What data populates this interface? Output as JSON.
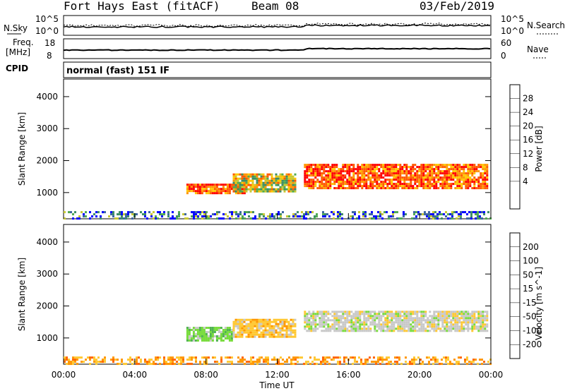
{
  "header": {
    "station": "Fort Hays East (fitACF)",
    "beam": "Beam 08",
    "date": "03/Feb/2019"
  },
  "summary_panels": {
    "nsky_label": "N.Sky",
    "nsearch_label": "N.Search",
    "noise_ticks": [
      "10^5",
      "10^0"
    ],
    "freq_label_1": "Freq.",
    "freq_label_2": "[MHz]",
    "freq_ticks": [
      "18",
      "8"
    ],
    "nave_label": "Nave",
    "nave_ticks": [
      "60",
      "0"
    ],
    "cpid_label": "CPID",
    "cpid_text": "normal (fast) 151 IF"
  },
  "chart_data": [
    {
      "type": "heatmap",
      "name": "power",
      "ylabel": "Slant Range [km]",
      "yticks": [
        1000,
        2000,
        3000,
        4000
      ],
      "ylim": [
        180,
        4550
      ],
      "xticks": [
        "00:00",
        "04:00",
        "08:00",
        "12:00",
        "16:00",
        "20:00",
        "00:00"
      ],
      "xlim": [
        0,
        24
      ],
      "colorbar": {
        "label": "Power [dB]",
        "ticks": [
          "28",
          "24",
          "20",
          "16",
          "12",
          "8",
          "4"
        ],
        "colors": [
          "#ff0000",
          "#ff5a00",
          "#ff9600",
          "#ffc800",
          "#c8c832",
          "#50aa50",
          "#3c8c64",
          "#3c64a0",
          "#0000ff"
        ]
      },
      "regions": [
        {
          "t0": 6.9,
          "t1": 10.2,
          "r0": 950,
          "r1": 1280,
          "level": "high"
        },
        {
          "t0": 9.5,
          "t1": 13.0,
          "r0": 1050,
          "r1": 1600,
          "level": "mid"
        },
        {
          "t0": 13.5,
          "t1": 23.8,
          "r0": 1150,
          "r1": 1900,
          "level": "high"
        },
        {
          "t0": 0.0,
          "t1": 24.0,
          "r0": 180,
          "r1": 420,
          "level": "low"
        }
      ]
    },
    {
      "type": "heatmap",
      "name": "velocity",
      "ylabel": "Slant Range [km]",
      "yticks": [
        1000,
        2000,
        3000,
        4000
      ],
      "ylim": [
        180,
        4550
      ],
      "xticks": [
        "00:00",
        "04:00",
        "08:00",
        "12:00",
        "16:00",
        "20:00",
        "00:00"
      ],
      "xlim": [
        0,
        24
      ],
      "xlabel": "Time UT",
      "colorbar": {
        "label": "Velocity [m s^-1]",
        "ticks": [
          "200",
          "100",
          "50",
          "15",
          "-15",
          "-50",
          "-100",
          "-200"
        ],
        "colors": [
          "#1e3cb4",
          "#3c8c64",
          "#50b450",
          "#78dc3c",
          "#c8c8c8",
          "#ffc832",
          "#ff9600",
          "#ff6400",
          "#ff0000"
        ]
      },
      "regions": [
        {
          "t0": 6.9,
          "t1": 9.5,
          "r0": 950,
          "r1": 1350,
          "level": "green"
        },
        {
          "t0": 9.5,
          "t1": 13.0,
          "r0": 1050,
          "r1": 1600,
          "level": "yellow"
        },
        {
          "t0": 13.5,
          "t1": 23.8,
          "r0": 1200,
          "r1": 1850,
          "level": "grey"
        },
        {
          "t0": 0.0,
          "t1": 24.0,
          "r0": 180,
          "r1": 420,
          "level": "orange"
        }
      ]
    }
  ]
}
